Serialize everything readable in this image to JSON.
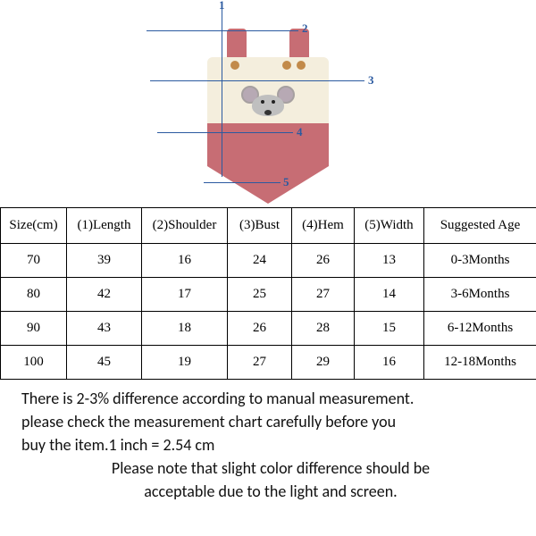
{
  "diagram": {
    "garment_colors": {
      "upper": "#f4eedd",
      "lower": "#c76d74",
      "strap": "#c76d74",
      "button": "#c28a4a",
      "mouse_face": "#bfbfbf",
      "mouse_ear": "#b7a9b4"
    },
    "measure_labels": {
      "n1": "1",
      "n2": "2",
      "n3": "3",
      "n4": "4",
      "n5": "5"
    },
    "arrow_color": "#2b5aa0"
  },
  "table": {
    "columns": [
      "Size(cm)",
      "(1)Length",
      "(2)Shoulder",
      "(3)Bust",
      "(4)Hem",
      "(5)Width",
      "Suggested Age"
    ],
    "rows": [
      [
        "70",
        "39",
        "16",
        "24",
        "26",
        "13",
        "0-3Months"
      ],
      [
        "80",
        "42",
        "17",
        "25",
        "27",
        "14",
        "3-6Months"
      ],
      [
        "90",
        "43",
        "18",
        "26",
        "28",
        "15",
        "6-12Months"
      ],
      [
        "100",
        "45",
        "19",
        "27",
        "29",
        "16",
        "12-18Months"
      ]
    ],
    "border_color": "#000000",
    "text_color": "#000000"
  },
  "notes": {
    "line1": "There is 2-3% difference according to manual measurement.",
    "line2": "please check the measurement chart carefully before you",
    "line3": "buy the item.1 inch = 2.54 cm",
    "line4": "Please note that slight color difference should be",
    "line5": "acceptable due to the light and screen."
  }
}
